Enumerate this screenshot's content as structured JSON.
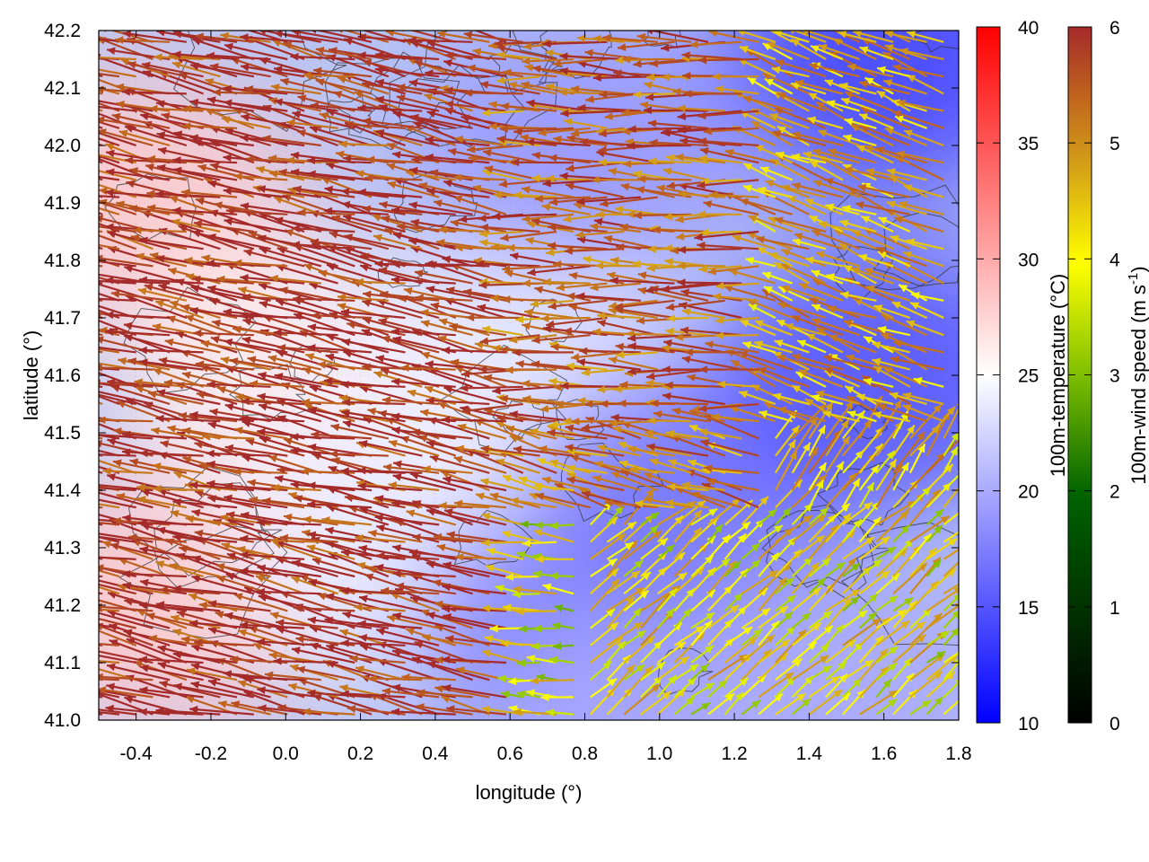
{
  "chart_data": {
    "type": "heatmap",
    "subtype": "temperature field with wind vector overlay",
    "title": "",
    "xlabel": "longitude (°)",
    "ylabel": "latitude (°)",
    "xlim": [
      -0.5,
      1.8
    ],
    "ylim": [
      41.0,
      42.2
    ],
    "x_ticks": [
      "-0.4",
      "-0.2",
      "0.0",
      "0.2",
      "0.4",
      "0.6",
      "0.8",
      "1.0",
      "1.2",
      "1.4",
      "1.6",
      "1.8"
    ],
    "y_ticks": [
      "41.0",
      "41.1",
      "41.2",
      "41.3",
      "41.4",
      "41.5",
      "41.6",
      "41.7",
      "41.8",
      "41.9",
      "42.0",
      "42.1",
      "42.2"
    ],
    "x_tick_values": [
      -0.4,
      -0.2,
      0.0,
      0.2,
      0.4,
      0.6,
      0.8,
      1.0,
      1.2,
      1.4,
      1.6,
      1.8
    ],
    "y_tick_values": [
      41.0,
      41.1,
      41.2,
      41.3,
      41.4,
      41.5,
      41.6,
      41.7,
      41.8,
      41.9,
      42.0,
      42.1,
      42.2
    ],
    "grid": true,
    "temperature_colorbar": {
      "label": "100m-temperature (°C)",
      "range": [
        10,
        40
      ],
      "ticks": [
        "10",
        "15",
        "20",
        "25",
        "30",
        "35",
        "40"
      ],
      "tick_values": [
        10,
        15,
        20,
        25,
        30,
        35,
        40
      ],
      "colors": [
        "#0000ff",
        "#ffffff",
        "#ff0000"
      ]
    },
    "wind_colorbar": {
      "label_main": "100m-wind speed (m s",
      "label_sup": "-1",
      "label_end": ")",
      "range": [
        0,
        6
      ],
      "ticks": [
        "0",
        "1",
        "2",
        "3",
        "4",
        "5",
        "6"
      ],
      "tick_values": [
        0,
        1,
        2,
        3,
        4,
        5,
        6
      ],
      "colors": [
        "#000000",
        "#006400",
        "#7fbf00",
        "#ffff00",
        "#d4a017",
        "#c0641e",
        "#a52a2a"
      ]
    },
    "temperature_regions": [
      {
        "lon": -0.4,
        "lat": 41.9,
        "temp": 28
      },
      {
        "lon": -0.35,
        "lat": 41.2,
        "temp": 28
      },
      {
        "lon": 0.0,
        "lat": 41.6,
        "temp": 26
      },
      {
        "lon": 0.3,
        "lat": 41.3,
        "temp": 24
      },
      {
        "lon": 0.6,
        "lat": 41.6,
        "temp": 24
      },
      {
        "lon": 0.8,
        "lat": 41.15,
        "temp": 17
      },
      {
        "lon": 1.0,
        "lat": 41.0,
        "temp": 20
      },
      {
        "lon": 1.1,
        "lat": 41.4,
        "temp": 17
      },
      {
        "lon": 1.6,
        "lat": 42.15,
        "temp": 14
      },
      {
        "lon": 1.6,
        "lat": 41.6,
        "temp": 15
      },
      {
        "lon": 1.5,
        "lat": 41.05,
        "temp": 20
      },
      {
        "lon": 0.8,
        "lat": 42.0,
        "temp": 19
      }
    ],
    "wind_regions": [
      {
        "lon_min": -0.5,
        "lon_max": 0.6,
        "lat_min": 41.0,
        "lat_max": 42.2,
        "u_dir": -0.98,
        "v_dir": 0.2,
        "speed": 5.8
      },
      {
        "lon_min": 0.6,
        "lon_max": 1.3,
        "lat_min": 41.5,
        "lat_max": 42.2,
        "u_dir": -1.0,
        "v_dir": 0.05,
        "speed": 5.0
      },
      {
        "lon_min": 1.3,
        "lon_max": 1.8,
        "lat_min": 41.5,
        "lat_max": 42.2,
        "u_dir": -0.9,
        "v_dir": 0.35,
        "speed": 4.0
      },
      {
        "lon_min": 0.8,
        "lon_max": 1.8,
        "lat_min": 41.0,
        "lat_max": 41.35,
        "u_dir": 0.75,
        "v_dir": 0.65,
        "speed": 3.2
      },
      {
        "lon_min": 0.6,
        "lon_max": 0.8,
        "lat_min": 41.0,
        "lat_max": 41.35,
        "u_dir": -0.95,
        "v_dir": 0.1,
        "speed": 3.0
      },
      {
        "lon_min": 1.3,
        "lon_max": 1.8,
        "lat_min": 41.35,
        "lat_max": 41.5,
        "u_dir": 0.6,
        "v_dir": 0.8,
        "speed": 3.8
      },
      {
        "lon_min": 0.6,
        "lon_max": 1.3,
        "lat_min": 41.35,
        "lat_max": 41.5,
        "u_dir": -0.95,
        "v_dir": 0.25,
        "speed": 4.6
      }
    ]
  }
}
